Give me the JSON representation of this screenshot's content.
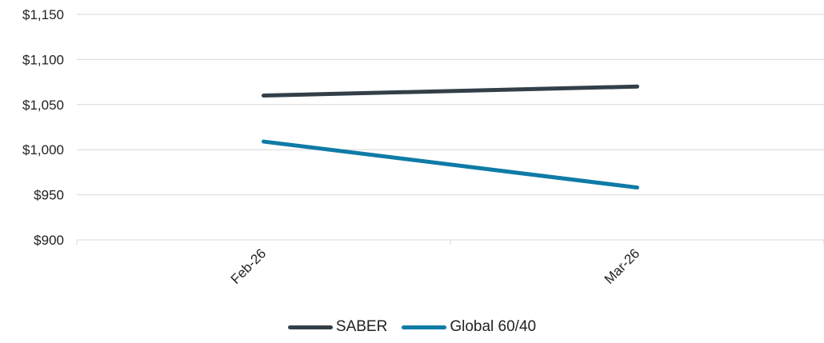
{
  "chart_data": {
    "type": "line",
    "title": "",
    "xlabel": "",
    "ylabel": "",
    "categories": [
      "Feb-26",
      "Mar-26"
    ],
    "series": [
      {
        "name": "SABER",
        "values": [
          1060,
          1070
        ],
        "color": "#333f48"
      },
      {
        "name": "Global 60/40",
        "values": [
          1009,
          958
        ],
        "color": "#0f7ba6"
      }
    ],
    "ylim": [
      900,
      1150
    ],
    "y_ticks": [
      900,
      950,
      1000,
      1050,
      1100,
      1150
    ],
    "y_tick_labels": [
      "$900",
      "$950",
      "$1,000",
      "$1,050",
      "$1,100",
      "$1,150"
    ],
    "grid": "horizontal",
    "grid_color": "#d9d9d9",
    "legend_position": "bottom-center"
  }
}
